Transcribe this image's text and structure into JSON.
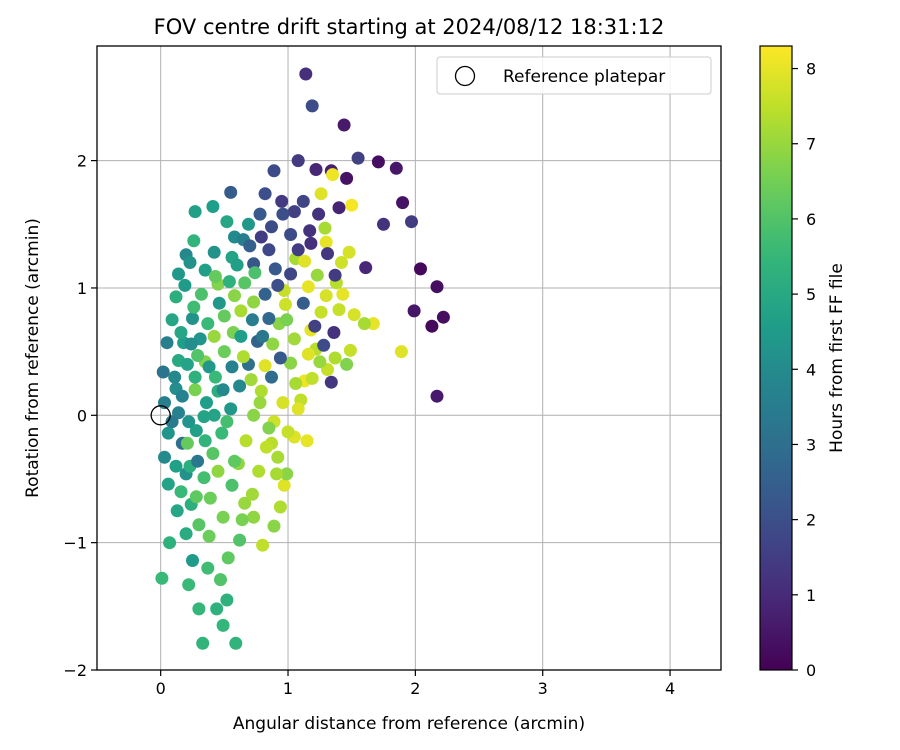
{
  "chart_data": {
    "type": "scatter",
    "title": "FOV centre drift starting at 2024/08/12 18:31:12",
    "xlabel": "Angular distance from reference (arcmin)",
    "ylabel": "Rotation from reference (arcmin)",
    "xlim": [
      -0.5,
      4.4
    ],
    "ylim": [
      -2.0,
      2.9
    ],
    "xticks": [
      {
        "v": 0,
        "label": "0"
      },
      {
        "v": 1,
        "label": "1"
      },
      {
        "v": 2,
        "label": "2"
      },
      {
        "v": 3,
        "label": "3"
      },
      {
        "v": 4,
        "label": "4"
      }
    ],
    "yticks": [
      {
        "v": -2,
        "label": "−2"
      },
      {
        "v": -1,
        "label": "−1"
      },
      {
        "v": 0,
        "label": "0"
      },
      {
        "v": 1,
        "label": "1"
      },
      {
        "v": 2,
        "label": "2"
      }
    ],
    "grid": true,
    "legend": {
      "position": "top-right",
      "entries": [
        {
          "label": "Reference platepar",
          "marker": "open-circle"
        }
      ]
    },
    "reference_point": {
      "x": 0,
      "y": 0
    },
    "colorbar": {
      "label": "Hours from first FF file",
      "colormap": "viridis",
      "range": [
        0,
        8.3
      ],
      "ticks": [
        {
          "v": 0,
          "label": "0"
        },
        {
          "v": 1,
          "label": "1"
        },
        {
          "v": 2,
          "label": "2"
        },
        {
          "v": 3,
          "label": "3"
        },
        {
          "v": 4,
          "label": "4"
        },
        {
          "v": 5,
          "label": "5"
        },
        {
          "v": 6,
          "label": "6"
        },
        {
          "v": 7,
          "label": "7"
        },
        {
          "v": 8,
          "label": "8"
        }
      ]
    },
    "points": [
      [
        1.14,
        2.68,
        1.1
      ],
      [
        1.19,
        2.43,
        1.9
      ],
      [
        1.44,
        2.28,
        0.6
      ],
      [
        1.08,
        2.0,
        1.4
      ],
      [
        1.22,
        1.93,
        0.9
      ],
      [
        1.34,
        1.92,
        0.7
      ],
      [
        1.46,
        1.86,
        0.4
      ],
      [
        1.55,
        2.02,
        1.6
      ],
      [
        1.71,
        1.99,
        0.3
      ],
      [
        1.85,
        1.94,
        0.5
      ],
      [
        1.9,
        1.67,
        0.4
      ],
      [
        1.97,
        1.52,
        1.5
      ],
      [
        1.75,
        1.5,
        1.2
      ],
      [
        1.4,
        1.63,
        0.8
      ],
      [
        1.26,
        1.74,
        7.9
      ],
      [
        1.35,
        1.89,
        8.1
      ],
      [
        1.5,
        1.65,
        8.2
      ],
      [
        1.3,
        1.36,
        8.0
      ],
      [
        1.42,
        1.2,
        7.7
      ],
      [
        1.48,
        1.28,
        7.8
      ],
      [
        1.61,
        1.16,
        0.9
      ],
      [
        2.04,
        1.15,
        0.2
      ],
      [
        2.17,
        1.01,
        0.3
      ],
      [
        1.99,
        0.82,
        0.5
      ],
      [
        2.22,
        0.77,
        0.3
      ],
      [
        2.13,
        0.7,
        0.2
      ],
      [
        2.17,
        0.15,
        0.6
      ],
      [
        1.89,
        0.5,
        7.9
      ],
      [
        1.67,
        0.72,
        8.0
      ],
      [
        1.6,
        0.72,
        7.2
      ],
      [
        1.49,
        0.51,
        7.6
      ],
      [
        1.37,
        0.45,
        7.3
      ],
      [
        1.34,
        0.26,
        1.3
      ],
      [
        1.22,
        0.52,
        7.4
      ],
      [
        1.02,
        0.41,
        6.8
      ],
      [
        0.89,
        1.92,
        1.9
      ],
      [
        0.82,
        1.74,
        2.0
      ],
      [
        0.78,
        1.58,
        2.3
      ],
      [
        0.55,
        1.75,
        2.4
      ],
      [
        0.52,
        1.52,
        4.9
      ],
      [
        0.41,
        1.64,
        4.6
      ],
      [
        0.27,
        1.6,
        4.7
      ],
      [
        0.26,
        1.37,
        5.4
      ],
      [
        0.42,
        1.28,
        4.2
      ],
      [
        0.58,
        1.4,
        4.0
      ],
      [
        0.65,
        1.38,
        3.6
      ],
      [
        1.02,
        1.42,
        1.9
      ],
      [
        0.9,
        1.15,
        2.3
      ],
      [
        0.73,
        1.19,
        2.2
      ],
      [
        0.85,
        1.3,
        1.8
      ],
      [
        1.06,
        1.23,
        7.2
      ],
      [
        1.16,
        1.01,
        8.0
      ],
      [
        0.97,
        0.98,
        7.6
      ],
      [
        0.73,
        0.89,
        6.9
      ],
      [
        0.63,
        0.82,
        7.2
      ],
      [
        0.45,
        1.03,
        6.7
      ],
      [
        0.35,
        1.14,
        4.7
      ],
      [
        0.2,
        1.26,
        3.9
      ],
      [
        0.14,
        1.11,
        4.4
      ],
      [
        0.12,
        0.93,
        5.2
      ],
      [
        0.09,
        0.75,
        4.9
      ],
      [
        0.05,
        0.57,
        3.6
      ],
      [
        0.02,
        0.34,
        3.2
      ],
      [
        0.03,
        0.1,
        3.6
      ],
      [
        0.06,
        -0.14,
        4.3
      ],
      [
        0.03,
        -0.33,
        4.0
      ],
      [
        0.06,
        -0.54,
        4.8
      ],
      [
        0.13,
        -0.75,
        4.9
      ],
      [
        0.07,
        -1.0,
        5.3
      ],
      [
        0.01,
        -1.28,
        5.6
      ],
      [
        0.2,
        -0.93,
        5.1
      ],
      [
        0.25,
        -1.14,
        4.5
      ],
      [
        0.22,
        -1.33,
        5.6
      ],
      [
        0.3,
        -1.52,
        5.5
      ],
      [
        0.33,
        -1.79,
        5.4
      ],
      [
        0.44,
        -1.52,
        5.3
      ],
      [
        0.52,
        -1.45,
        5.3
      ],
      [
        0.49,
        -1.65,
        5.5
      ],
      [
        0.59,
        -1.79,
        5.4
      ],
      [
        0.47,
        -1.29,
        6.0
      ],
      [
        0.37,
        -1.2,
        5.7
      ],
      [
        0.53,
        -1.12,
        6.2
      ],
      [
        0.62,
        -0.98,
        6.0
      ],
      [
        0.66,
        -0.69,
        7.0
      ],
      [
        0.73,
        -0.8,
        6.9
      ],
      [
        0.8,
        -1.02,
        7.5
      ],
      [
        0.89,
        -0.87,
        6.8
      ],
      [
        0.94,
        -0.72,
        7.3
      ],
      [
        0.97,
        -0.55,
        7.9
      ],
      [
        0.99,
        -0.46,
        6.8
      ],
      [
        0.91,
        -0.46,
        7.2
      ],
      [
        0.87,
        -0.22,
        7.4
      ],
      [
        1.05,
        -0.17,
        7.9
      ],
      [
        1.1,
        0.12,
        7.5
      ],
      [
        1.13,
        0.27,
        8.1
      ],
      [
        1.16,
        0.48,
        7.9
      ],
      [
        1.18,
        0.67,
        8.0
      ],
      [
        1.26,
        0.81,
        7.6
      ],
      [
        1.3,
        0.94,
        7.8
      ],
      [
        1.4,
        0.83,
        7.6
      ],
      [
        1.52,
        0.79,
        7.8
      ],
      [
        1.38,
        1.04,
        7.4
      ],
      [
        1.23,
        1.1,
        7.0
      ],
      [
        1.13,
        1.21,
        7.9
      ],
      [
        1.08,
        1.3,
        1.5
      ],
      [
        1.17,
        1.45,
        1.2
      ],
      [
        1.05,
        1.6,
        1.6
      ],
      [
        0.95,
        1.68,
        1.4
      ],
      [
        0.69,
        1.5,
        4.4
      ],
      [
        0.56,
        1.24,
        4.8
      ],
      [
        0.43,
        1.09,
        6.3
      ],
      [
        0.32,
        0.95,
        5.9
      ],
      [
        0.25,
        0.76,
        4.2
      ],
      [
        0.18,
        0.57,
        4.6
      ],
      [
        0.14,
        0.43,
        5.0
      ],
      [
        0.12,
        0.21,
        4.1
      ],
      [
        0.14,
        0.02,
        3.7
      ],
      [
        0.17,
        -0.22,
        3.0
      ],
      [
        0.2,
        -0.46,
        4.2
      ],
      [
        0.24,
        -0.7,
        5.2
      ],
      [
        0.3,
        -0.86,
        6.1
      ],
      [
        0.38,
        -0.95,
        6.4
      ],
      [
        0.49,
        -0.8,
        6.6
      ],
      [
        0.56,
        -0.55,
        5.9
      ],
      [
        0.61,
        -0.38,
        6.9
      ],
      [
        0.67,
        -0.2,
        7.4
      ],
      [
        0.73,
        0.0,
        6.8
      ],
      [
        0.79,
        0.19,
        7.3
      ],
      [
        0.82,
        0.39,
        7.9
      ],
      [
        0.88,
        0.56,
        6.9
      ],
      [
        0.93,
        0.72,
        6.8
      ],
      [
        0.98,
        0.87,
        7.7
      ],
      [
        0.85,
        0.76,
        2.8
      ],
      [
        0.76,
        0.58,
        2.6
      ],
      [
        0.69,
        0.4,
        3.0
      ],
      [
        0.62,
        0.23,
        3.9
      ],
      [
        0.55,
        0.05,
        4.4
      ],
      [
        0.48,
        -0.14,
        5.6
      ],
      [
        0.41,
        -0.3,
        6.1
      ],
      [
        0.34,
        -0.49,
        5.8
      ],
      [
        0.28,
        -0.64,
        6.2
      ],
      [
        0.21,
        -0.22,
        6.3
      ],
      [
        0.27,
        0.2,
        6.6
      ],
      [
        0.35,
        0.42,
        6.7
      ],
      [
        0.42,
        0.62,
        7.0
      ],
      [
        0.5,
        0.78,
        6.3
      ],
      [
        0.58,
        0.94,
        6.8
      ],
      [
        0.66,
        1.04,
        6.1
      ],
      [
        0.74,
        1.12,
        5.9
      ],
      [
        0.82,
        0.95,
        2.6
      ],
      [
        0.92,
        1.02,
        2.0
      ],
      [
        1.02,
        1.11,
        1.7
      ],
      [
        1.12,
        0.88,
        2.4
      ],
      [
        1.21,
        0.7,
        1.6
      ],
      [
        1.28,
        0.55,
        1.9
      ],
      [
        1.31,
        0.36,
        7.6
      ],
      [
        1.19,
        0.29,
        7.5
      ],
      [
        1.06,
        0.25,
        7.2
      ],
      [
        0.96,
        0.1,
        7.8
      ],
      [
        0.89,
        -0.05,
        7.7
      ],
      [
        0.83,
        -0.25,
        7.5
      ],
      [
        0.77,
        -0.44,
        7.3
      ],
      [
        0.72,
        -0.62,
        7.1
      ],
      [
        0.64,
        -0.82,
        6.6
      ],
      [
        0.58,
        -0.36,
        6.2
      ],
      [
        0.52,
        -0.05,
        5.8
      ],
      [
        0.45,
        0.19,
        5.2
      ],
      [
        0.38,
        0.38,
        4.4
      ],
      [
        0.31,
        0.6,
        4.3
      ],
      [
        0.26,
        0.85,
        5.7
      ],
      [
        0.19,
        1.02,
        4.5
      ],
      [
        0.23,
        1.2,
        4.2
      ],
      [
        0.16,
        0.65,
        4.9
      ],
      [
        0.11,
        0.3,
        3.9
      ],
      [
        0.09,
        -0.05,
        3.4
      ],
      [
        0.12,
        -0.4,
        4.7
      ],
      [
        0.16,
        -0.6,
        5.6
      ],
      [
        0.23,
        -0.4,
        5.2
      ],
      [
        0.28,
        -0.12,
        4.7
      ],
      [
        0.36,
        0.1,
        4.6
      ],
      [
        0.43,
        0.3,
        5.6
      ],
      [
        0.5,
        0.5,
        6.4
      ],
      [
        0.57,
        0.65,
        6.6
      ],
      [
        0.65,
        0.46,
        7.3
      ],
      [
        0.71,
        0.28,
        7.1
      ],
      [
        0.78,
        0.1,
        7.0
      ],
      [
        0.85,
        -0.1,
        6.7
      ],
      [
        0.92,
        -0.33,
        7.2
      ],
      [
        1.0,
        -0.13,
        7.6
      ],
      [
        1.08,
        0.05,
        7.9
      ],
      [
        1.15,
        -0.2,
        8.0
      ],
      [
        1.05,
        0.6,
        7.1
      ],
      [
        0.99,
        0.75,
        6.6
      ],
      [
        0.94,
        0.45,
        2.3
      ],
      [
        0.87,
        0.3,
        2.9
      ],
      [
        0.8,
        0.62,
        3.3
      ],
      [
        0.72,
        0.75,
        3.5
      ],
      [
        0.63,
        0.62,
        4.6
      ],
      [
        0.56,
        0.38,
        3.7
      ],
      [
        0.49,
        0.2,
        3.9
      ],
      [
        0.42,
        0.0,
        4.8
      ],
      [
        0.35,
        -0.2,
        5.4
      ],
      [
        0.29,
        -0.36,
        3.3
      ],
      [
        0.22,
        -0.05,
        4.3
      ],
      [
        0.17,
        0.15,
        3.7
      ],
      [
        0.21,
        0.4,
        4.8
      ],
      [
        0.29,
        0.47,
        6.0
      ],
      [
        0.37,
        0.72,
        5.6
      ],
      [
        0.46,
        0.88,
        4.4
      ],
      [
        0.54,
        1.05,
        5.3
      ],
      [
        0.6,
        1.18,
        4.7
      ],
      [
        0.7,
        1.33,
        2.5
      ],
      [
        0.79,
        1.4,
        1.5
      ],
      [
        0.87,
        1.48,
        1.9
      ],
      [
        0.96,
        1.58,
        2.0
      ],
      [
        1.12,
        1.68,
        1.7
      ],
      [
        1.24,
        1.58,
        1.2
      ],
      [
        1.18,
        1.35,
        1.1
      ],
      [
        1.31,
        1.27,
        1.3
      ],
      [
        1.37,
        1.1,
        1.4
      ],
      [
        1.29,
        1.47,
        7.2
      ],
      [
        1.43,
        0.95,
        8.0
      ],
      [
        1.46,
        0.4,
        6.7
      ],
      [
        1.36,
        0.65,
        1.2
      ],
      [
        1.25,
        0.42,
        7.0
      ],
      [
        0.39,
        -0.65,
        6.4
      ],
      [
        0.45,
        -0.44,
        6.9
      ],
      [
        0.34,
        -0.01,
        4.8
      ],
      [
        0.27,
        0.3,
        5.3
      ],
      [
        0.24,
        0.56,
        4.1
      ]
    ]
  }
}
